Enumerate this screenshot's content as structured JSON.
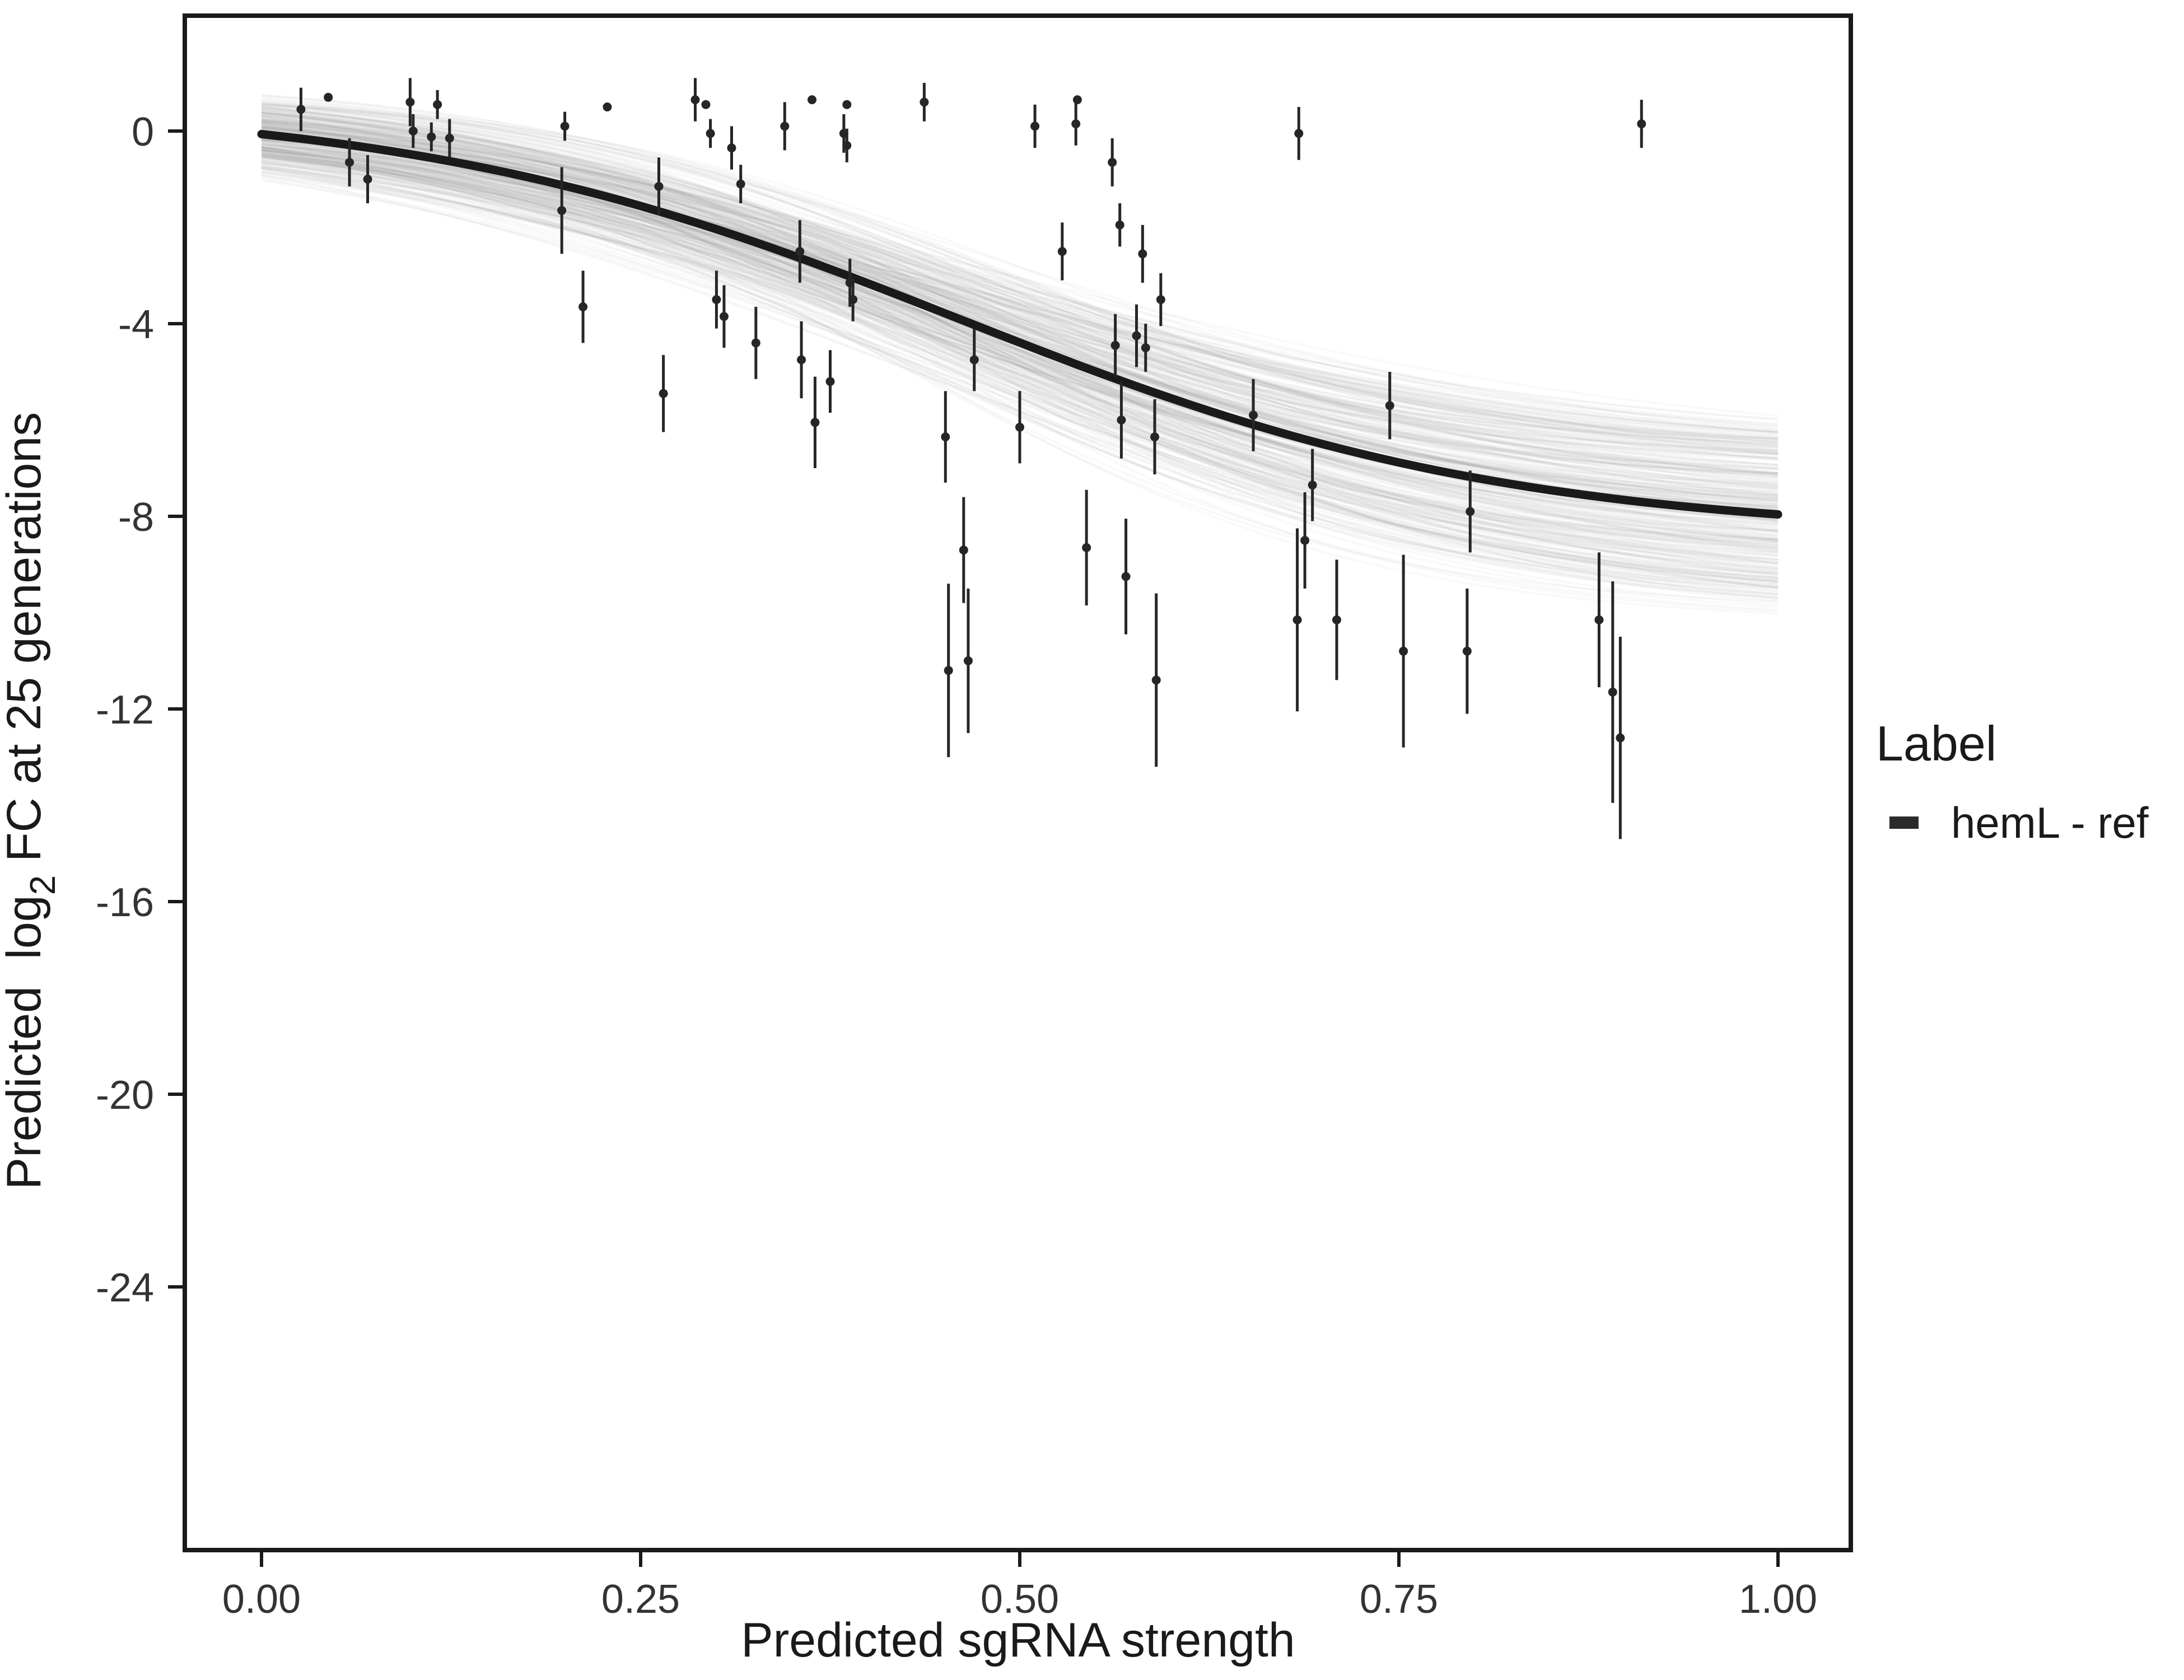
{
  "figure": {
    "xlabel": "Predicted sgRNA strength",
    "ylabel_main": "Predicted  log",
    "ylabel_sub": "2",
    "ylabel_rest": " FC at 25 generations",
    "legend": {
      "title": "Label",
      "entry": "hemL - ref",
      "swatch_color": "#2b2b2b"
    }
  },
  "chart_data": {
    "type": "scatter",
    "title": "",
    "xlabel": "Predicted sgRNA strength",
    "ylabel": "Predicted log2 FC at 25 generations",
    "xlim": [
      -0.05,
      1.05
    ],
    "ylim": [
      -29.5,
      2.4
    ],
    "grid": false,
    "x_ticks": {
      "values": [
        0,
        0.25,
        0.5,
        0.75,
        1.0
      ],
      "labels": [
        "0.00",
        "0.25",
        "0.50",
        "0.75",
        "1.00"
      ]
    },
    "y_ticks": {
      "values": [
        0,
        -4,
        -8,
        -12,
        -16,
        -20,
        -24
      ],
      "labels": [
        "0",
        "-4",
        "-8",
        "-12",
        "-16",
        "-20",
        "-24"
      ]
    },
    "legend": {
      "title": "Label",
      "position": "right",
      "entries": [
        "hemL - ref"
      ]
    },
    "series": [
      {
        "name": "hemL - ref",
        "type": "scatter-errorbar",
        "color": "#262626",
        "points_format": [
          "x",
          "y",
          "err"
        ],
        "points": [
          [
            0.026,
            0.45,
            0.45
          ],
          [
            0.044,
            0.7,
            0
          ],
          [
            0.058,
            -0.65,
            0.5
          ],
          [
            0.07,
            -1.0,
            0.5
          ],
          [
            0.098,
            0.6,
            0.5
          ],
          [
            0.1,
            0.0,
            0.35
          ],
          [
            0.112,
            -0.12,
            0.3
          ],
          [
            0.116,
            0.55,
            0.3
          ],
          [
            0.124,
            -0.15,
            0.4
          ],
          [
            0.198,
            -1.65,
            0.9
          ],
          [
            0.2,
            0.1,
            0.3
          ],
          [
            0.212,
            -3.65,
            0.75
          ],
          [
            0.228,
            0.5,
            0
          ],
          [
            0.262,
            -1.15,
            0.6
          ],
          [
            0.265,
            -5.45,
            0.8
          ],
          [
            0.286,
            0.65,
            0.45
          ],
          [
            0.293,
            0.55,
            0
          ],
          [
            0.296,
            -0.05,
            0.3
          ],
          [
            0.3,
            -3.5,
            0.6
          ],
          [
            0.305,
            -3.85,
            0.65
          ],
          [
            0.31,
            -0.35,
            0.45
          ],
          [
            0.316,
            -1.1,
            0.4
          ],
          [
            0.326,
            -4.4,
            0.75
          ],
          [
            0.345,
            0.1,
            0.5
          ],
          [
            0.355,
            -2.5,
            0.65
          ],
          [
            0.356,
            -4.75,
            0.8
          ],
          [
            0.363,
            0.65,
            0
          ],
          [
            0.365,
            -6.05,
            0.95
          ],
          [
            0.375,
            -5.2,
            0.65
          ],
          [
            0.384,
            -0.05,
            0.4
          ],
          [
            0.386,
            -0.3,
            0.35
          ],
          [
            0.386,
            0.55,
            0
          ],
          [
            0.388,
            -3.15,
            0.5
          ],
          [
            0.39,
            -3.5,
            0.45
          ],
          [
            0.437,
            0.6,
            0.4
          ],
          [
            0.451,
            -6.35,
            0.95
          ],
          [
            0.453,
            -11.2,
            1.8
          ],
          [
            0.463,
            -8.7,
            1.1
          ],
          [
            0.466,
            -11.0,
            1.5
          ],
          [
            0.47,
            -4.75,
            0.65
          ],
          [
            0.5,
            -6.15,
            0.75
          ],
          [
            0.51,
            0.1,
            0.45
          ],
          [
            0.528,
            -2.5,
            0.6
          ],
          [
            0.537,
            0.15,
            0.45
          ],
          [
            0.538,
            0.65,
            0
          ],
          [
            0.544,
            -8.65,
            1.2
          ],
          [
            0.561,
            -0.65,
            0.5
          ],
          [
            0.563,
            -4.45,
            0.65
          ],
          [
            0.566,
            -1.95,
            0.45
          ],
          [
            0.567,
            -6.0,
            0.8
          ],
          [
            0.57,
            -9.25,
            1.2
          ],
          [
            0.577,
            -4.25,
            0.65
          ],
          [
            0.581,
            -2.55,
            0.6
          ],
          [
            0.583,
            -4.5,
            0.5
          ],
          [
            0.589,
            -6.35,
            0.78
          ],
          [
            0.59,
            -11.4,
            1.8
          ],
          [
            0.593,
            -3.5,
            0.55
          ],
          [
            0.654,
            -5.9,
            0.75
          ],
          [
            0.683,
            -10.15,
            1.9
          ],
          [
            0.684,
            -0.05,
            0.55
          ],
          [
            0.688,
            -8.5,
            1.0
          ],
          [
            0.693,
            -7.35,
            0.75
          ],
          [
            0.709,
            -10.15,
            1.25
          ],
          [
            0.744,
            -5.7,
            0.7
          ],
          [
            0.753,
            -10.8,
            2.0
          ],
          [
            0.795,
            -10.8,
            1.3
          ],
          [
            0.797,
            -7.9,
            0.85
          ],
          [
            0.882,
            -10.15,
            1.4
          ],
          [
            0.891,
            -11.65,
            2.3
          ],
          [
            0.896,
            -12.6,
            2.1
          ],
          [
            0.91,
            0.15,
            0.5
          ]
        ]
      }
    ],
    "fit_curve": {
      "model": "logistic",
      "top": 0.6,
      "bottom": -8.4,
      "x0": 0.46,
      "k": 5.5,
      "color": "#1a1a1a"
    },
    "uncertainty_band": {
      "style": "posterior-draws",
      "draws": 300,
      "color": "#808080",
      "top_spread": 1.1,
      "bottom_spread": 3.8,
      "x0_spread": 0.09,
      "k_spread": 2.6
    }
  }
}
